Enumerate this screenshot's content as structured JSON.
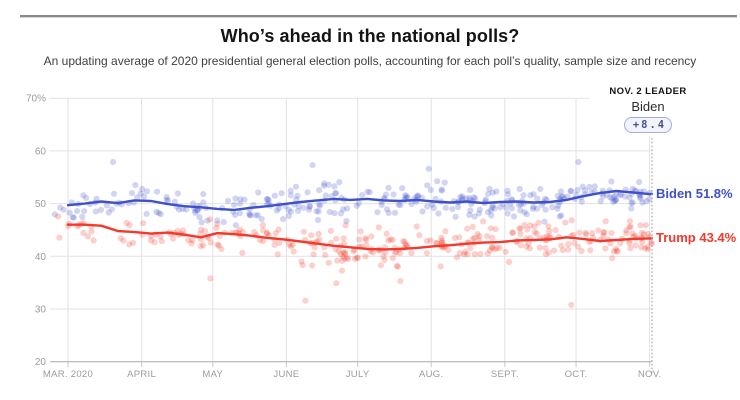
{
  "page": {
    "background": "#ffffff"
  },
  "header": {
    "title": "Who’s ahead in the national polls?",
    "subtitle": "An updating average of 2020 presidential general election polls, accounting for each poll’s quality, sample size and recency"
  },
  "leader_callout": {
    "heading": "NOV. 2 LEADER",
    "name": "Biden",
    "margin": "+8.4",
    "badge_text_color": "#47538f",
    "badge_border_color": "#a3aedb",
    "badge_bg_color": "#f2f4fb"
  },
  "chart_data": {
    "type": "line",
    "title": "Who’s ahead in the national polls?",
    "x_axis": {
      "unit": "days since Mar 1, 2020",
      "end_day": 246,
      "months": [
        {
          "label": "MAR. 2020",
          "day": 0
        },
        {
          "label": "APRIL",
          "day": 31
        },
        {
          "label": "MAY",
          "day": 61
        },
        {
          "label": "JUNE",
          "day": 92
        },
        {
          "label": "JULY",
          "day": 122
        },
        {
          "label": "AUG.",
          "day": 153
        },
        {
          "label": "SEPT.",
          "day": 184
        },
        {
          "label": "OCT.",
          "day": 214
        },
        {
          "label": "NOV.",
          "day": 245
        }
      ]
    },
    "y_axis": {
      "min": 20,
      "max": 70,
      "ticks": [
        {
          "value": 70,
          "label": "70%"
        },
        {
          "value": 60,
          "label": "60"
        },
        {
          "value": 50,
          "label": "50"
        },
        {
          "value": 40,
          "label": "40"
        },
        {
          "value": 30,
          "label": "30"
        },
        {
          "value": 20,
          "label": "20"
        }
      ]
    },
    "grid": true,
    "colors": {
      "grid": "#e2e2e2",
      "axis": "#ababab",
      "tick_label": "#9b9b9b",
      "election_line": "#a6a9ad"
    },
    "series": [
      {
        "name": "Biden",
        "color": "#3e51c9",
        "end_label": "Biden 51.8%",
        "final_value": 51.8,
        "sample_step_days": 7,
        "values": [
          49.7,
          50.0,
          50.4,
          50.1,
          50.6,
          50.5,
          49.9,
          49.5,
          49.3,
          49.0,
          48.8,
          49.2,
          49.5,
          49.9,
          50.3,
          50.6,
          50.9,
          50.7,
          50.9,
          50.6,
          50.5,
          50.7,
          50.4,
          50.2,
          50.4,
          50.1,
          50.3,
          50.4,
          50.2,
          50.3,
          50.7,
          51.4,
          52.0,
          52.4,
          52.1,
          51.8
        ]
      },
      {
        "name": "Trump",
        "color": "#f2392b",
        "end_label": "Trump 43.4%",
        "final_value": 43.4,
        "sample_step_days": 7,
        "values": [
          46.0,
          46.0,
          45.8,
          44.8,
          44.6,
          44.3,
          44.5,
          44.1,
          43.6,
          44.4,
          44.2,
          43.9,
          43.5,
          43.2,
          42.8,
          42.4,
          42.0,
          41.7,
          41.4,
          41.3,
          41.4,
          41.6,
          41.9,
          42.1,
          42.4,
          42.6,
          42.7,
          43.0,
          43.1,
          43.2,
          43.6,
          43.3,
          42.9,
          43.1,
          43.3,
          43.4
        ]
      }
    ],
    "election_line": {
      "day": 246,
      "label_date": "NOV. 2"
    },
    "scatter": {
      "per_series": 320,
      "seed": 20201102,
      "day_min": -6,
      "density_exponent": 0.75,
      "jitter": [
        2.9,
        3.4
      ],
      "radius": 3.1,
      "opacity": 0.24,
      "outlier_polls": [
        {
          "series": 0,
          "day": 19,
          "value": 57.9
        },
        {
          "series": 0,
          "day": 103,
          "value": 57.3
        },
        {
          "series": 0,
          "day": 152,
          "value": 56.6
        },
        {
          "series": 0,
          "day": 215,
          "value": 57.9
        },
        {
          "series": 1,
          "day": 60,
          "value": 35.8
        },
        {
          "series": 1,
          "day": 100,
          "value": 31.6
        },
        {
          "series": 1,
          "day": 113,
          "value": 34.9
        },
        {
          "series": 1,
          "day": 140,
          "value": 35.3
        },
        {
          "series": 1,
          "day": 212,
          "value": 30.8
        }
      ]
    }
  }
}
